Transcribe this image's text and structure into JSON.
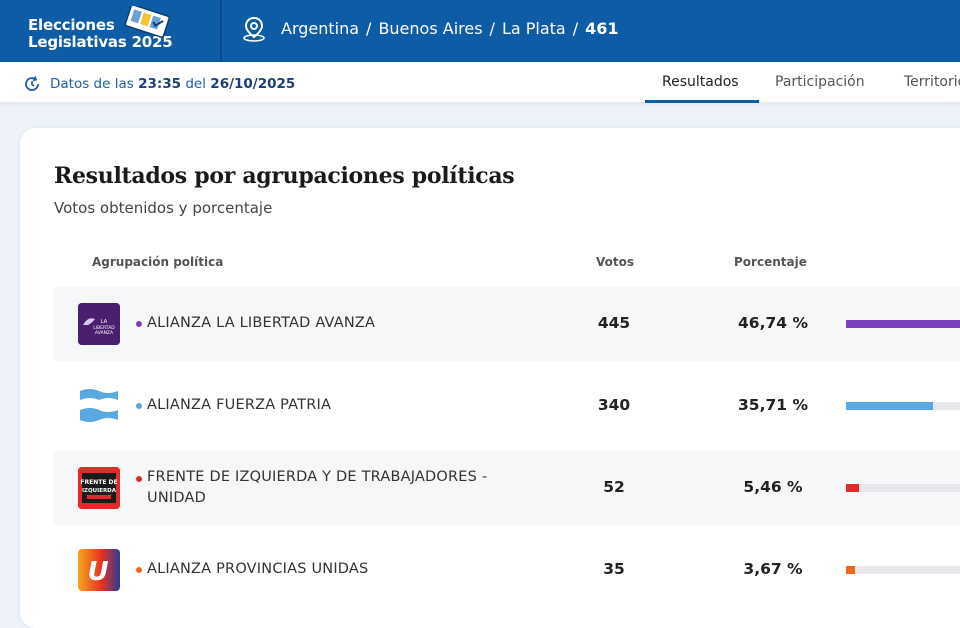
{
  "header": {
    "brand_line1": "Elecciones",
    "brand_line2": "Legislativas 2025",
    "breadcrumb": [
      "Argentina",
      "Buenos Aires",
      "La Plata",
      "461"
    ],
    "separator": "/"
  },
  "subbar": {
    "updated_prefix": "Datos de las",
    "updated_time": "23:35",
    "updated_mid": "del",
    "updated_date": "26/10/2025",
    "tabs": [
      "Resultados",
      "Participación",
      "Territorio"
    ],
    "active_tab": 0
  },
  "card": {
    "title": "Resultados por agrupaciones políticas",
    "subtitle": "Votos obtenidos y porcentaje",
    "columns": {
      "party": "Agrupación política",
      "votes": "Votos",
      "percent": "Porcentaje"
    }
  },
  "parties": [
    {
      "name": "ALIANZA LA LIBERTAD AVANZA",
      "votes": "445",
      "percent": "46,74 %",
      "share": 0.4674,
      "color": "#7b3fbf",
      "logo_text": "LA LIBERTAD AVANZA"
    },
    {
      "name": "ALIANZA FUERZA PATRIA",
      "votes": "340",
      "percent": "35,71 %",
      "share": 0.3571,
      "color": "#5aa8e0",
      "logo_text": ""
    },
    {
      "name": "FRENTE DE IZQUIERDA Y DE TRABAJADORES - UNIDAD",
      "votes": "52",
      "percent": "5,46 %",
      "share": 0.0546,
      "color": "#e02b2b",
      "logo_text": "FRENTE DE IZQUIERDA"
    },
    {
      "name": "ALIANZA PROVINCIAS UNIDAS",
      "votes": "35",
      "percent": "3,67 %",
      "share": 0.0367,
      "color": "#f0641e",
      "logo_text": "U"
    }
  ]
}
